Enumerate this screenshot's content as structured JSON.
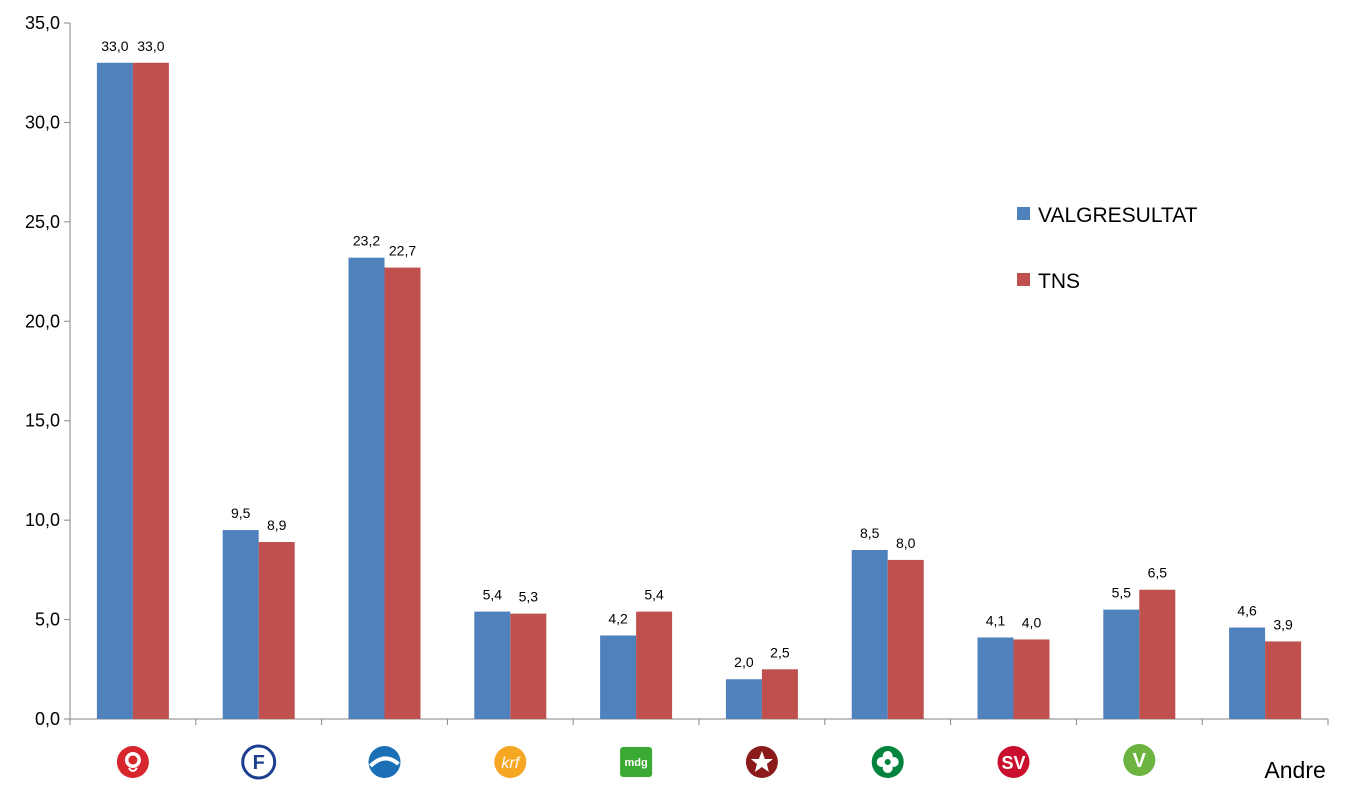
{
  "chart_data": {
    "type": "bar",
    "title": "",
    "xlabel": "",
    "ylabel": "",
    "ylim": [
      0,
      35
    ],
    "y_ticks": [
      "0,0",
      "5,0",
      "10,0",
      "15,0",
      "20,0",
      "25,0",
      "30,0",
      "35,0"
    ],
    "grid": false,
    "legend_position": "right",
    "categories": [
      {
        "label": "",
        "logo": "ap-rose-logo",
        "color": "#d7262e"
      },
      {
        "label": "",
        "logo": "frp-logo",
        "color": "#1d3f8f"
      },
      {
        "label": "",
        "logo": "hoyre-logo",
        "color": "#1a6fb5"
      },
      {
        "label": "",
        "logo": "krf-logo",
        "color": "#f5a623"
      },
      {
        "label": "",
        "logo": "mdg-logo",
        "color": "#3aaa35"
      },
      {
        "label": "",
        "logo": "rodt-star-logo",
        "color": "#8b1a1a"
      },
      {
        "label": "",
        "logo": "sp-clover-logo",
        "color": "#00843d"
      },
      {
        "label": "",
        "logo": "sv-logo",
        "color": "#c8102e"
      },
      {
        "label": "",
        "logo": "venstre-logo",
        "color": "#6cb33f"
      },
      {
        "label": "Andre",
        "logo": "",
        "color": ""
      }
    ],
    "series": [
      {
        "name": "VALGRESULTAT",
        "color": "#4f81bd",
        "values": [
          33.0,
          9.5,
          23.2,
          5.4,
          4.2,
          2.0,
          8.5,
          4.1,
          5.5,
          4.6
        ],
        "labels": [
          "33,0",
          "9,5",
          "23,2",
          "5,4",
          "4,2",
          "2,0",
          "8,5",
          "4,1",
          "5,5",
          "4,6"
        ]
      },
      {
        "name": "TNS",
        "color": "#c0504d",
        "values": [
          33.0,
          8.9,
          22.7,
          5.3,
          5.4,
          2.5,
          8.0,
          4.0,
          6.5,
          3.9
        ],
        "labels": [
          "33,0",
          "8,9",
          "22,7",
          "5,3",
          "5,4",
          "2,5",
          "8,0",
          "4,0",
          "6,5",
          "3,9"
        ]
      }
    ]
  }
}
